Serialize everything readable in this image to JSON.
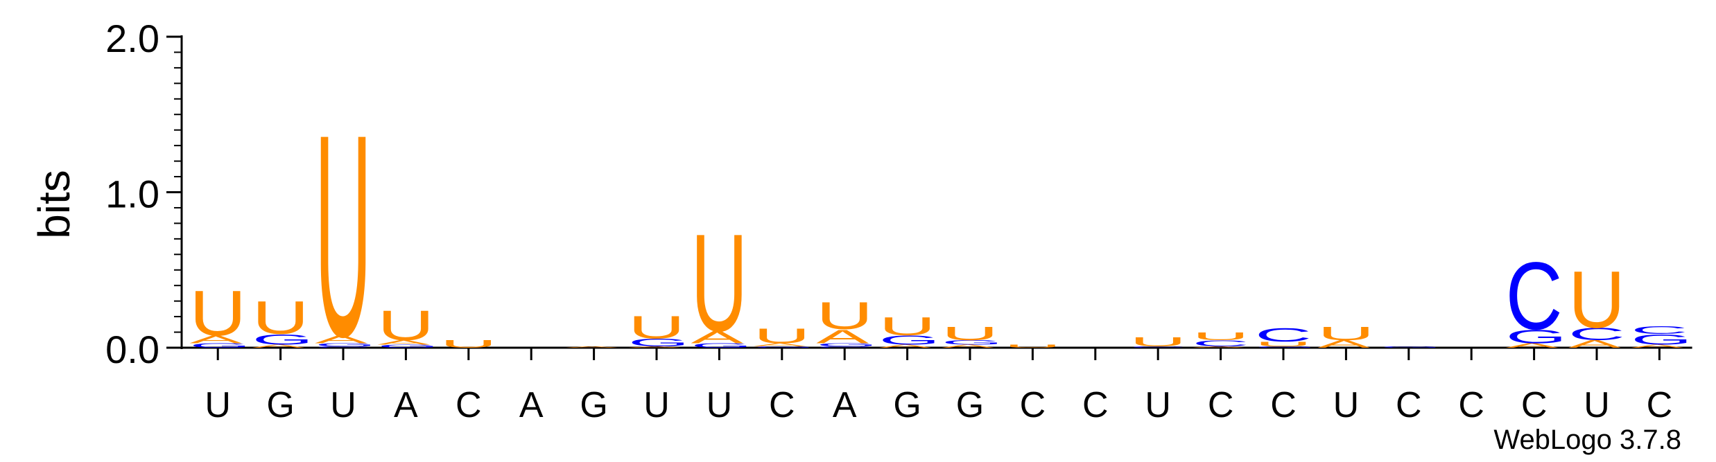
{
  "chart_data": {
    "type": "sequence-logo",
    "ylabel": "bits",
    "ylim": [
      0,
      2.0
    ],
    "y_ticks": [
      "0.0",
      "1.0",
      "2.0"
    ],
    "x_labels": [
      "U",
      "G",
      "U",
      "A",
      "C",
      "A",
      "G",
      "U",
      "U",
      "C",
      "A",
      "G",
      "G",
      "C",
      "C",
      "U",
      "C",
      "C",
      "U",
      "C",
      "C",
      "C",
      "U",
      "C"
    ],
    "colors": {
      "U": "#FF8C00",
      "A": "#FF8C00",
      "G": "#0000FF",
      "C": "#0000FF"
    },
    "stacks": [
      [
        [
          "G",
          0.03
        ],
        [
          "A",
          0.05
        ],
        [
          "U",
          0.3
        ]
      ],
      [
        [
          "A",
          0.02
        ],
        [
          "G",
          0.07
        ],
        [
          "U",
          0.22
        ]
      ],
      [
        [
          "C",
          0.01
        ],
        [
          "G",
          0.02
        ],
        [
          "A",
          0.05
        ],
        [
          "U",
          1.35
        ]
      ],
      [
        [
          "G",
          0.02
        ],
        [
          "A",
          0.03
        ],
        [
          "U",
          0.2
        ]
      ],
      [
        [
          "U",
          0.05
        ]
      ],
      [],
      [
        [
          "A",
          0.01
        ]
      ],
      [
        [
          "A",
          0.01
        ],
        [
          "G",
          0.05
        ],
        [
          "U",
          0.15
        ]
      ],
      [
        [
          "G",
          0.03
        ],
        [
          "A",
          0.08
        ],
        [
          "U",
          0.65
        ]
      ],
      [
        [
          "G",
          0.01
        ],
        [
          "A",
          0.02
        ],
        [
          "U",
          0.1
        ]
      ],
      [
        [
          "C",
          0.01
        ],
        [
          "G",
          0.02
        ],
        [
          "A",
          0.09
        ],
        [
          "U",
          0.18
        ]
      ],
      [
        [
          "A",
          0.02
        ],
        [
          "G",
          0.06
        ],
        [
          "U",
          0.12
        ]
      ],
      [
        [
          "A",
          0.02
        ],
        [
          "G",
          0.03
        ],
        [
          "U",
          0.09
        ]
      ],
      [
        [
          "U",
          0.02
        ]
      ],
      [],
      [
        [
          "C",
          0.01
        ],
        [
          "U",
          0.06
        ]
      ],
      [
        [
          "A",
          0.01
        ],
        [
          "C",
          0.04
        ],
        [
          "U",
          0.05
        ]
      ],
      [
        [
          "G",
          0.01
        ],
        [
          "U",
          0.03
        ],
        [
          "C",
          0.09
        ]
      ],
      [
        [
          "A",
          0.05
        ],
        [
          "U",
          0.09
        ]
      ],
      [
        [
          "G",
          0.01
        ]
      ],
      [],
      [
        [
          "A",
          0.03
        ],
        [
          "G",
          0.09
        ],
        [
          "C",
          0.45
        ]
      ],
      [
        [
          "A",
          0.05
        ],
        [
          "C",
          0.08
        ],
        [
          "U",
          0.38
        ]
      ],
      [
        [
          "A",
          0.02
        ],
        [
          "G",
          0.07
        ],
        [
          "C",
          0.05
        ]
      ]
    ]
  },
  "credit": "WebLogo 3.7.8"
}
